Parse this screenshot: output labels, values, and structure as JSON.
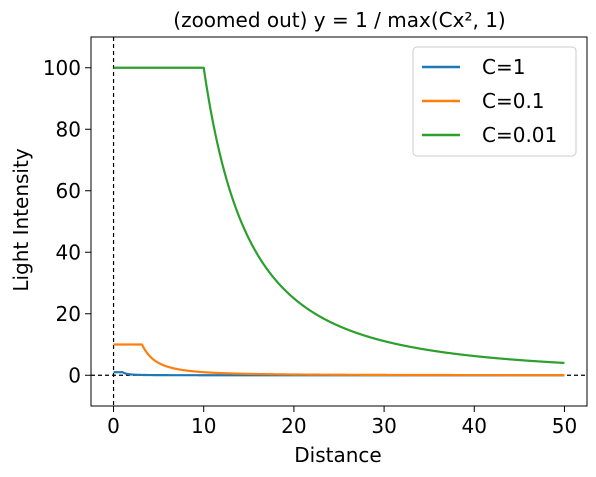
{
  "chart_data": {
    "type": "line",
    "title": "(zoomed out) y = 1 / max(Cx², 1)",
    "xlabel": "Distance",
    "ylabel": "Light Intensity",
    "xlim": [
      -2.5,
      52.5
    ],
    "ylim": [
      -10,
      110
    ],
    "xticks": [
      0,
      10,
      20,
      30,
      40,
      50
    ],
    "yticks": [
      0,
      20,
      40,
      60,
      80,
      100
    ],
    "grid": false,
    "legend_position": "top-right",
    "reference_lines": {
      "vertical_x": 0,
      "horizontal_y": 0,
      "style": "dashed",
      "color": "#000000"
    },
    "x_domain": [
      0,
      50
    ],
    "series": [
      {
        "name": "C=1",
        "C": 1,
        "color": "#1f77b4"
      },
      {
        "name": "C=0.1",
        "C": 0.1,
        "color": "#ff7f0e"
      },
      {
        "name": "C=0.01",
        "C": 0.01,
        "color": "#2ca02c"
      }
    ]
  }
}
